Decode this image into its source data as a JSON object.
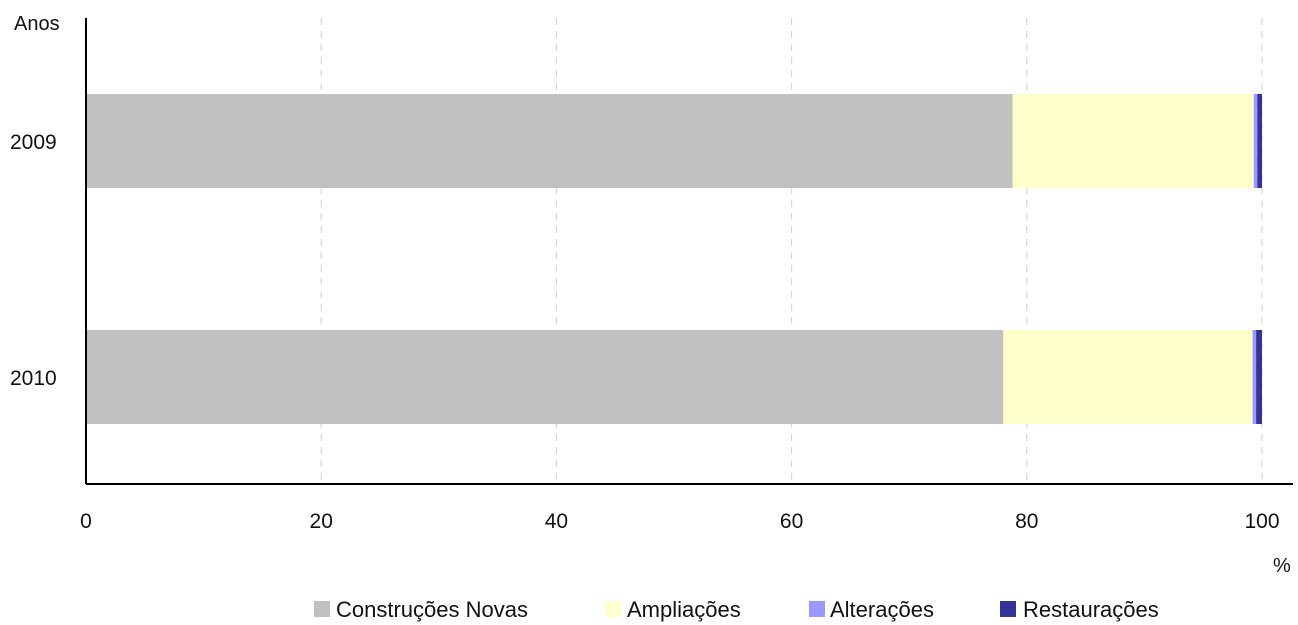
{
  "chart_data": {
    "type": "bar",
    "orientation": "horizontal",
    "stacked": true,
    "title": "",
    "categories": [
      "2009",
      "2010"
    ],
    "ylabel": "Anos",
    "xlabel": "%",
    "xlim": [
      0,
      100
    ],
    "xticks": [
      0,
      20,
      40,
      60,
      80,
      100
    ],
    "grid": "vertical dashed",
    "legend_position": "bottom",
    "series": [
      {
        "name": "Construções Novas",
        "color": "#c0c0c0",
        "values": [
          78.8,
          78.0
        ]
      },
      {
        "name": "Ampliações",
        "color": "#ffffcc",
        "values": [
          20.5,
          21.2
        ]
      },
      {
        "name": "Alterações",
        "color": "#9999ff",
        "values": [
          0.3,
          0.3
        ]
      },
      {
        "name": "Restaurações",
        "color": "#333399",
        "values": [
          0.4,
          0.5
        ]
      }
    ]
  }
}
